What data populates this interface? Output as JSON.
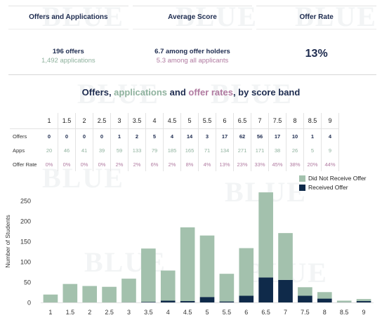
{
  "kpis": {
    "offers_apps": {
      "title": "Offers and Applications",
      "main": "196 offers",
      "sub": "1,492 applications"
    },
    "avg_score": {
      "title": "Average Score",
      "main": "6.7 among offer holders",
      "sub": "5.3 among all applicants"
    },
    "offer_rate": {
      "title": "Offer Rate",
      "value": "13%"
    }
  },
  "title_parts": {
    "a": "Offers, ",
    "b": "applications",
    "c": " and ",
    "d": "offer rates",
    "e": ", by score band"
  },
  "table": {
    "row_labels": {
      "offers": "Offers",
      "apps": "Apps",
      "rate": "Offer Rate"
    },
    "bands": [
      "1",
      "1.5",
      "2",
      "2.5",
      "3",
      "3.5",
      "4",
      "4.5",
      "5",
      "5.5",
      "6",
      "6.5",
      "7",
      "7.5",
      "8",
      "8.5",
      "9"
    ],
    "offers": [
      "0",
      "0",
      "0",
      "0",
      "1",
      "2",
      "5",
      "4",
      "14",
      "3",
      "17",
      "62",
      "56",
      "17",
      "10",
      "1",
      "4"
    ],
    "apps": [
      "20",
      "46",
      "41",
      "39",
      "59",
      "133",
      "79",
      "185",
      "165",
      "71",
      "134",
      "271",
      "171",
      "38",
      "26",
      "5",
      "9"
    ],
    "rate": [
      "0%",
      "0%",
      "0%",
      "0%",
      "2%",
      "2%",
      "6%",
      "2%",
      "8%",
      "4%",
      "13%",
      "23%",
      "33%",
      "45%",
      "38%",
      "20%",
      "44%"
    ]
  },
  "watermark": "BLUE",
  "chart_data": {
    "type": "bar",
    "stacked": true,
    "categories": [
      "1",
      "1.5",
      "2",
      "2.5",
      "3",
      "3.5",
      "4",
      "4.5",
      "5",
      "5.5",
      "6",
      "6.5",
      "7",
      "7.5",
      "8",
      "8.5",
      "9"
    ],
    "series": [
      {
        "name": "Did Not Receive Offer",
        "color": "#a3c1ad",
        "values": [
          20,
          46,
          41,
          39,
          58,
          131,
          74,
          181,
          151,
          68,
          117,
          209,
          115,
          21,
          16,
          4,
          5
        ]
      },
      {
        "name": "Received Offer",
        "color": "#0f2a4a",
        "values": [
          0,
          0,
          0,
          0,
          1,
          2,
          5,
          4,
          14,
          3,
          17,
          62,
          56,
          17,
          10,
          1,
          4
        ]
      }
    ],
    "ylabel": "Number of Students",
    "yticks": [
      0,
      50,
      100,
      150,
      200,
      250
    ],
    "ylim": [
      -8,
      285
    ],
    "legend": "top-right",
    "grid": false
  }
}
